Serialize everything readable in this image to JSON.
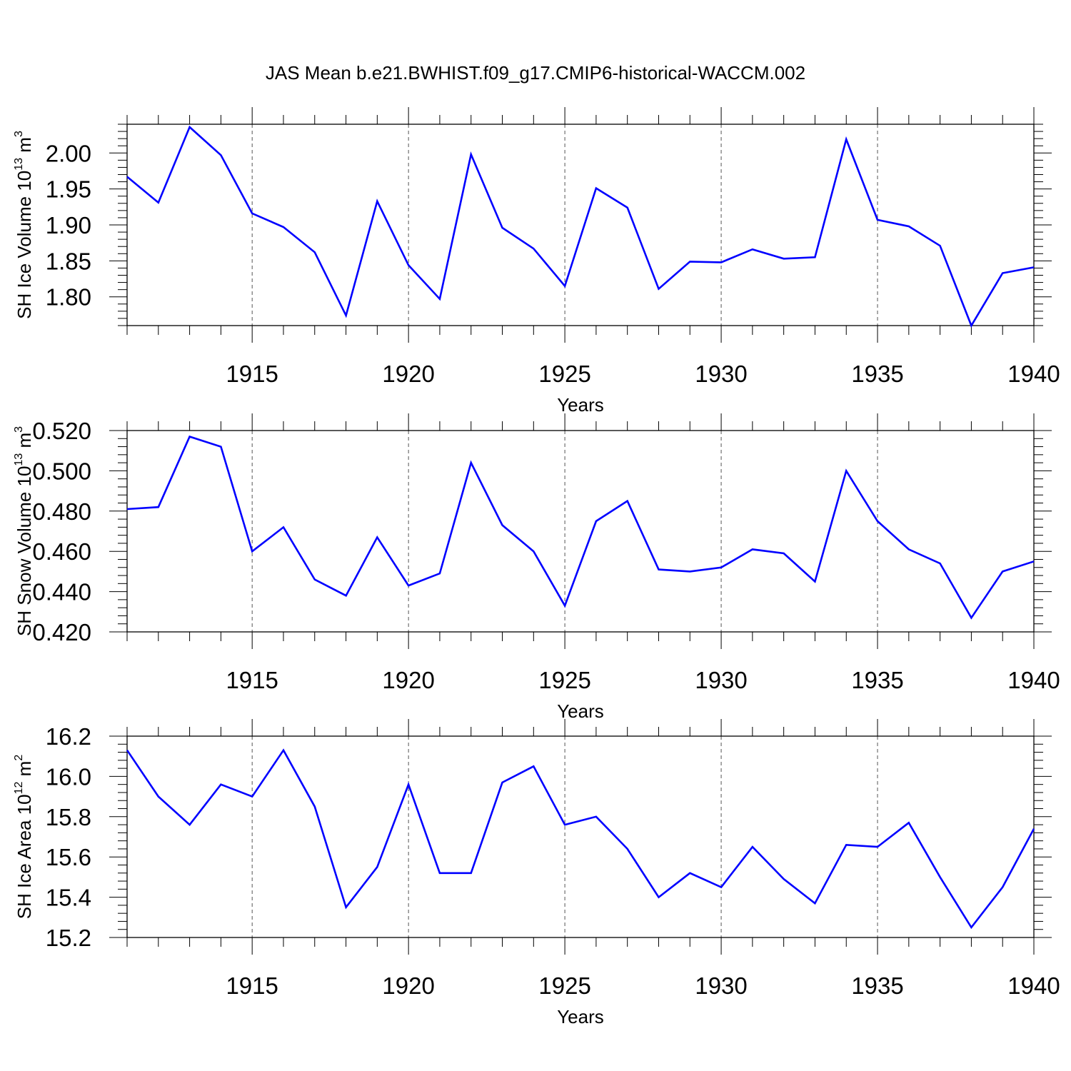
{
  "title": "JAS Mean b.e21.BWHIST.f09_g17.CMIP6-historical-WACCM.002",
  "line_color": "#0000ff",
  "chart_data": [
    {
      "type": "line",
      "ylabel_base": "SH Ice Volume 10",
      "ylabel_exp": "13",
      "ylabel_unit": " m",
      "ylabel_unit_exp": "3",
      "xlabel": "Years",
      "xlim": [
        1911,
        1940
      ],
      "ylim": [
        1.76,
        2.04
      ],
      "x_ticks": [
        1915,
        1920,
        1925,
        1930,
        1935,
        1940
      ],
      "x_tick_labels": [
        "1915",
        "1920",
        "1925",
        "1930",
        "1935",
        "1940"
      ],
      "y_ticks": [
        1.8,
        1.85,
        1.9,
        1.95,
        2.0
      ],
      "y_tick_labels": [
        "1.80",
        "1.85",
        "1.90",
        "1.95",
        "2.00"
      ],
      "x": [
        1911,
        1912,
        1913,
        1914,
        1915,
        1916,
        1917,
        1918,
        1919,
        1920,
        1921,
        1922,
        1923,
        1924,
        1925,
        1926,
        1927,
        1928,
        1929,
        1930,
        1931,
        1932,
        1933,
        1934,
        1935,
        1936,
        1937,
        1938,
        1939,
        1940
      ],
      "values": [
        1.967,
        1.931,
        2.036,
        1.997,
        1.916,
        1.897,
        1.862,
        1.774,
        1.933,
        1.844,
        1.797,
        1.998,
        1.896,
        1.867,
        1.815,
        1.951,
        1.924,
        1.811,
        1.849,
        1.848,
        1.866,
        1.853,
        1.855,
        2.019,
        1.907,
        1.898,
        1.871,
        1.76,
        1.833,
        1.841
      ]
    },
    {
      "type": "line",
      "ylabel_base": "SH Snow Volume 10",
      "ylabel_exp": "13",
      "ylabel_unit": " m",
      "ylabel_unit_exp": "3",
      "xlabel": "Years",
      "xlim": [
        1911,
        1940
      ],
      "ylim": [
        0.42,
        0.52
      ],
      "x_ticks": [
        1915,
        1920,
        1925,
        1930,
        1935,
        1940
      ],
      "x_tick_labels": [
        "1915",
        "1920",
        "1925",
        "1930",
        "1935",
        "1940"
      ],
      "y_ticks": [
        0.42,
        0.44,
        0.46,
        0.48,
        0.5,
        0.52
      ],
      "y_tick_labels": [
        "0.420",
        "0.440",
        "0.460",
        "0.480",
        "0.500",
        "0.520"
      ],
      "x": [
        1911,
        1912,
        1913,
        1914,
        1915,
        1916,
        1917,
        1918,
        1919,
        1920,
        1921,
        1922,
        1923,
        1924,
        1925,
        1926,
        1927,
        1928,
        1929,
        1930,
        1931,
        1932,
        1933,
        1934,
        1935,
        1936,
        1937,
        1938,
        1939,
        1940
      ],
      "values": [
        0.481,
        0.482,
        0.517,
        0.512,
        0.46,
        0.472,
        0.446,
        0.438,
        0.467,
        0.443,
        0.449,
        0.504,
        0.473,
        0.46,
        0.433,
        0.475,
        0.485,
        0.451,
        0.45,
        0.452,
        0.461,
        0.459,
        0.445,
        0.5,
        0.475,
        0.461,
        0.454,
        0.427,
        0.45,
        0.455
      ]
    },
    {
      "type": "line",
      "ylabel_base": "SH Ice Area 10",
      "ylabel_exp": "12",
      "ylabel_unit": " m",
      "ylabel_unit_exp": "2",
      "xlabel": "Years",
      "xlim": [
        1911,
        1940
      ],
      "ylim": [
        15.2,
        16.2
      ],
      "x_ticks": [
        1915,
        1920,
        1925,
        1930,
        1935,
        1940
      ],
      "x_tick_labels": [
        "1915",
        "1920",
        "1925",
        "1930",
        "1935",
        "1940"
      ],
      "y_ticks": [
        15.2,
        15.4,
        15.6,
        15.8,
        16.0,
        16.2
      ],
      "y_tick_labels": [
        "15.2",
        "15.4",
        "15.6",
        "15.8",
        "16.0",
        "16.2"
      ],
      "x": [
        1911,
        1912,
        1913,
        1914,
        1915,
        1916,
        1917,
        1918,
        1919,
        1920,
        1921,
        1922,
        1923,
        1924,
        1925,
        1926,
        1927,
        1928,
        1929,
        1930,
        1931,
        1932,
        1933,
        1934,
        1935,
        1936,
        1937,
        1938,
        1939,
        1940
      ],
      "values": [
        16.13,
        15.9,
        15.76,
        15.96,
        15.9,
        16.13,
        15.85,
        15.35,
        15.55,
        15.96,
        15.52,
        15.52,
        15.97,
        16.05,
        15.76,
        15.8,
        15.64,
        15.4,
        15.52,
        15.45,
        15.65,
        15.49,
        15.37,
        15.66,
        15.65,
        15.77,
        15.5,
        15.25,
        15.45,
        15.74
      ]
    }
  ]
}
